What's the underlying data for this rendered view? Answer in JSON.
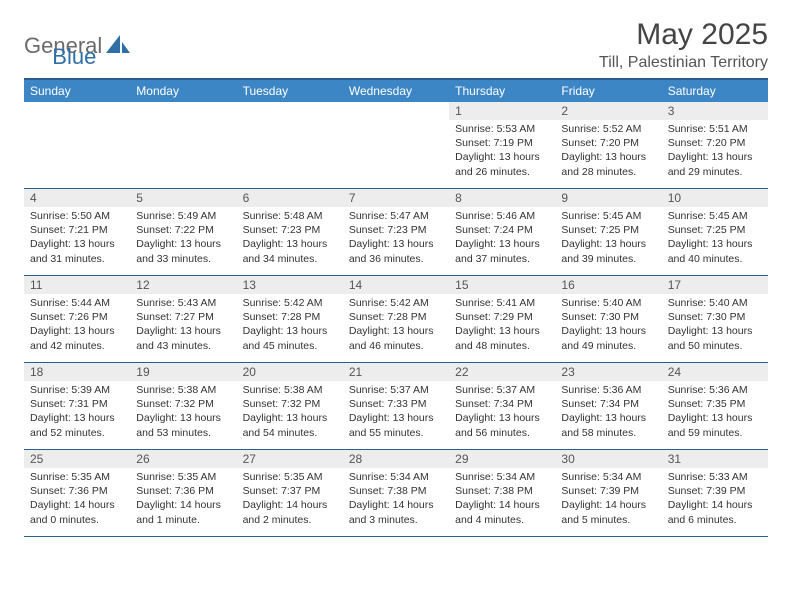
{
  "brand": {
    "text1": "General",
    "text2": "Blue"
  },
  "title": "May 2025",
  "location": "Till, Palestinian Territory",
  "colors": {
    "header_bg": "#3d86c6",
    "header_border_top": "#2b5e8a",
    "row_border": "#2b5e8a",
    "daynum_bg": "#ededed",
    "text": "#333333",
    "brand_gray": "#6b6b6b",
    "brand_blue": "#2f6fa8"
  },
  "fonts": {
    "title_size": 30,
    "location_size": 16,
    "weekday_size": 12,
    "daynum_size": 12,
    "detail_size": 10.5
  },
  "weekdays": [
    "Sunday",
    "Monday",
    "Tuesday",
    "Wednesday",
    "Thursday",
    "Friday",
    "Saturday"
  ],
  "weeks": [
    [
      null,
      null,
      null,
      null,
      {
        "n": "1",
        "sr": "5:53 AM",
        "ss": "7:19 PM",
        "dl": "13 hours and 26 minutes."
      },
      {
        "n": "2",
        "sr": "5:52 AM",
        "ss": "7:20 PM",
        "dl": "13 hours and 28 minutes."
      },
      {
        "n": "3",
        "sr": "5:51 AM",
        "ss": "7:20 PM",
        "dl": "13 hours and 29 minutes."
      }
    ],
    [
      {
        "n": "4",
        "sr": "5:50 AM",
        "ss": "7:21 PM",
        "dl": "13 hours and 31 minutes."
      },
      {
        "n": "5",
        "sr": "5:49 AM",
        "ss": "7:22 PM",
        "dl": "13 hours and 33 minutes."
      },
      {
        "n": "6",
        "sr": "5:48 AM",
        "ss": "7:23 PM",
        "dl": "13 hours and 34 minutes."
      },
      {
        "n": "7",
        "sr": "5:47 AM",
        "ss": "7:23 PM",
        "dl": "13 hours and 36 minutes."
      },
      {
        "n": "8",
        "sr": "5:46 AM",
        "ss": "7:24 PM",
        "dl": "13 hours and 37 minutes."
      },
      {
        "n": "9",
        "sr": "5:45 AM",
        "ss": "7:25 PM",
        "dl": "13 hours and 39 minutes."
      },
      {
        "n": "10",
        "sr": "5:45 AM",
        "ss": "7:25 PM",
        "dl": "13 hours and 40 minutes."
      }
    ],
    [
      {
        "n": "11",
        "sr": "5:44 AM",
        "ss": "7:26 PM",
        "dl": "13 hours and 42 minutes."
      },
      {
        "n": "12",
        "sr": "5:43 AM",
        "ss": "7:27 PM",
        "dl": "13 hours and 43 minutes."
      },
      {
        "n": "13",
        "sr": "5:42 AM",
        "ss": "7:28 PM",
        "dl": "13 hours and 45 minutes."
      },
      {
        "n": "14",
        "sr": "5:42 AM",
        "ss": "7:28 PM",
        "dl": "13 hours and 46 minutes."
      },
      {
        "n": "15",
        "sr": "5:41 AM",
        "ss": "7:29 PM",
        "dl": "13 hours and 48 minutes."
      },
      {
        "n": "16",
        "sr": "5:40 AM",
        "ss": "7:30 PM",
        "dl": "13 hours and 49 minutes."
      },
      {
        "n": "17",
        "sr": "5:40 AM",
        "ss": "7:30 PM",
        "dl": "13 hours and 50 minutes."
      }
    ],
    [
      {
        "n": "18",
        "sr": "5:39 AM",
        "ss": "7:31 PM",
        "dl": "13 hours and 52 minutes."
      },
      {
        "n": "19",
        "sr": "5:38 AM",
        "ss": "7:32 PM",
        "dl": "13 hours and 53 minutes."
      },
      {
        "n": "20",
        "sr": "5:38 AM",
        "ss": "7:32 PM",
        "dl": "13 hours and 54 minutes."
      },
      {
        "n": "21",
        "sr": "5:37 AM",
        "ss": "7:33 PM",
        "dl": "13 hours and 55 minutes."
      },
      {
        "n": "22",
        "sr": "5:37 AM",
        "ss": "7:34 PM",
        "dl": "13 hours and 56 minutes."
      },
      {
        "n": "23",
        "sr": "5:36 AM",
        "ss": "7:34 PM",
        "dl": "13 hours and 58 minutes."
      },
      {
        "n": "24",
        "sr": "5:36 AM",
        "ss": "7:35 PM",
        "dl": "13 hours and 59 minutes."
      }
    ],
    [
      {
        "n": "25",
        "sr": "5:35 AM",
        "ss": "7:36 PM",
        "dl": "14 hours and 0 minutes."
      },
      {
        "n": "26",
        "sr": "5:35 AM",
        "ss": "7:36 PM",
        "dl": "14 hours and 1 minute."
      },
      {
        "n": "27",
        "sr": "5:35 AM",
        "ss": "7:37 PM",
        "dl": "14 hours and 2 minutes."
      },
      {
        "n": "28",
        "sr": "5:34 AM",
        "ss": "7:38 PM",
        "dl": "14 hours and 3 minutes."
      },
      {
        "n": "29",
        "sr": "5:34 AM",
        "ss": "7:38 PM",
        "dl": "14 hours and 4 minutes."
      },
      {
        "n": "30",
        "sr": "5:34 AM",
        "ss": "7:39 PM",
        "dl": "14 hours and 5 minutes."
      },
      {
        "n": "31",
        "sr": "5:33 AM",
        "ss": "7:39 PM",
        "dl": "14 hours and 6 minutes."
      }
    ]
  ],
  "labels": {
    "sunrise_prefix": "Sunrise: ",
    "sunset_prefix": "Sunset: ",
    "daylight_prefix": "Daylight: "
  }
}
